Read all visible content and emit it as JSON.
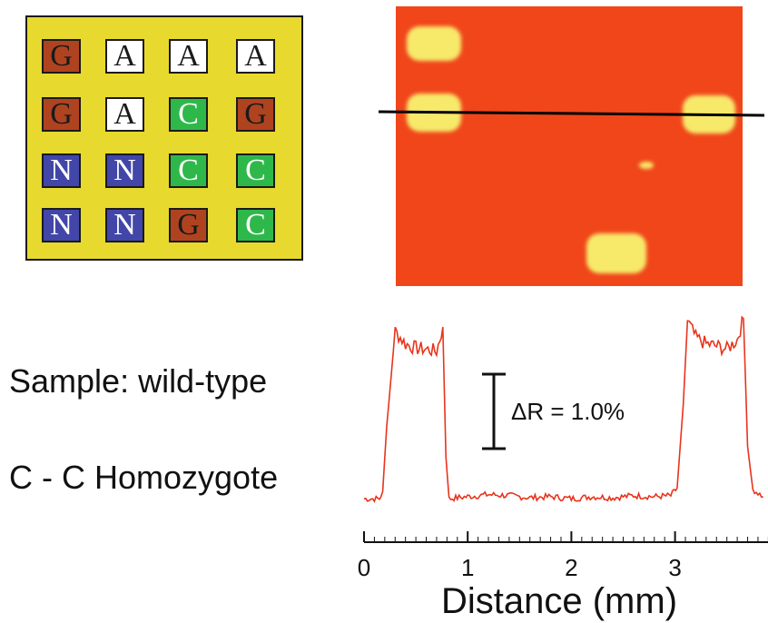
{
  "array": {
    "rows": [
      [
        {
          "letter": "G",
          "color": "#b0431f",
          "text_color": "#1a1a1a"
        },
        {
          "letter": "A",
          "color": "#ffffff",
          "text_color": "#1a1a1a"
        },
        {
          "letter": "A",
          "color": "#ffffff",
          "text_color": "#1a1a1a"
        },
        {
          "letter": "A",
          "color": "#ffffff",
          "text_color": "#1a1a1a"
        }
      ],
      [
        {
          "letter": "G",
          "color": "#b0431f",
          "text_color": "#1a1a1a"
        },
        {
          "letter": "A",
          "color": "#ffffff",
          "text_color": "#1a1a1a"
        },
        {
          "letter": "C",
          "color": "#2fb84a",
          "text_color": "#ffffff"
        },
        {
          "letter": "G",
          "color": "#b0431f",
          "text_color": "#1a1a1a"
        }
      ],
      [
        {
          "letter": "N",
          "color": "#4246a8",
          "text_color": "#ffffff"
        },
        {
          "letter": "N",
          "color": "#4246a8",
          "text_color": "#ffffff"
        },
        {
          "letter": "C",
          "color": "#2fb84a",
          "text_color": "#ffffff"
        },
        {
          "letter": "C",
          "color": "#2fb84a",
          "text_color": "#ffffff"
        }
      ],
      [
        {
          "letter": "N",
          "color": "#4246a8",
          "text_color": "#ffffff"
        },
        {
          "letter": "N",
          "color": "#4246a8",
          "text_color": "#ffffff"
        },
        {
          "letter": "G",
          "color": "#b0431f",
          "text_color": "#1a1a1a"
        },
        {
          "letter": "C",
          "color": "#2fb84a",
          "text_color": "#ffffff"
        }
      ]
    ],
    "panel_color": "#e8d92e"
  },
  "image": {
    "background_color": "#f0461a",
    "spot_color": "#f7e96a"
  },
  "labels": {
    "sample": "Sample: wild-type",
    "genotype": "C - C Homozygote"
  },
  "chart_data": {
    "type": "line",
    "title": "",
    "xlabel": "Distance (mm)",
    "ylabel": "",
    "xlim": [
      0,
      3.9
    ],
    "xticks": [
      0,
      1,
      2,
      3
    ],
    "xtick_labels": [
      "0",
      "1",
      "2",
      "3"
    ],
    "scale_bar": {
      "label": "ΔR = 1.0%",
      "value_percent": 1.0
    },
    "series": [
      {
        "line_color": "#e8341c",
        "x": [
          0.0,
          0.15,
          0.18,
          0.22,
          0.3,
          0.4,
          0.5,
          0.6,
          0.7,
          0.76,
          0.79,
          0.82,
          0.9,
          1.0,
          1.2,
          1.4,
          1.6,
          1.8,
          2.0,
          2.2,
          2.4,
          2.6,
          2.8,
          2.96,
          3.02,
          3.08,
          3.12,
          3.2,
          3.3,
          3.4,
          3.5,
          3.6,
          3.66,
          3.7,
          3.75,
          3.85
        ],
        "y": [
          0.05,
          0.05,
          0.12,
          0.75,
          1.64,
          1.52,
          1.48,
          1.47,
          1.45,
          1.68,
          0.45,
          0.05,
          0.06,
          0.07,
          0.09,
          0.08,
          0.06,
          0.07,
          0.05,
          0.07,
          0.06,
          0.08,
          0.07,
          0.08,
          0.15,
          0.95,
          1.74,
          1.58,
          1.52,
          1.5,
          1.47,
          1.56,
          1.76,
          0.55,
          0.14,
          0.07
        ]
      }
    ]
  }
}
